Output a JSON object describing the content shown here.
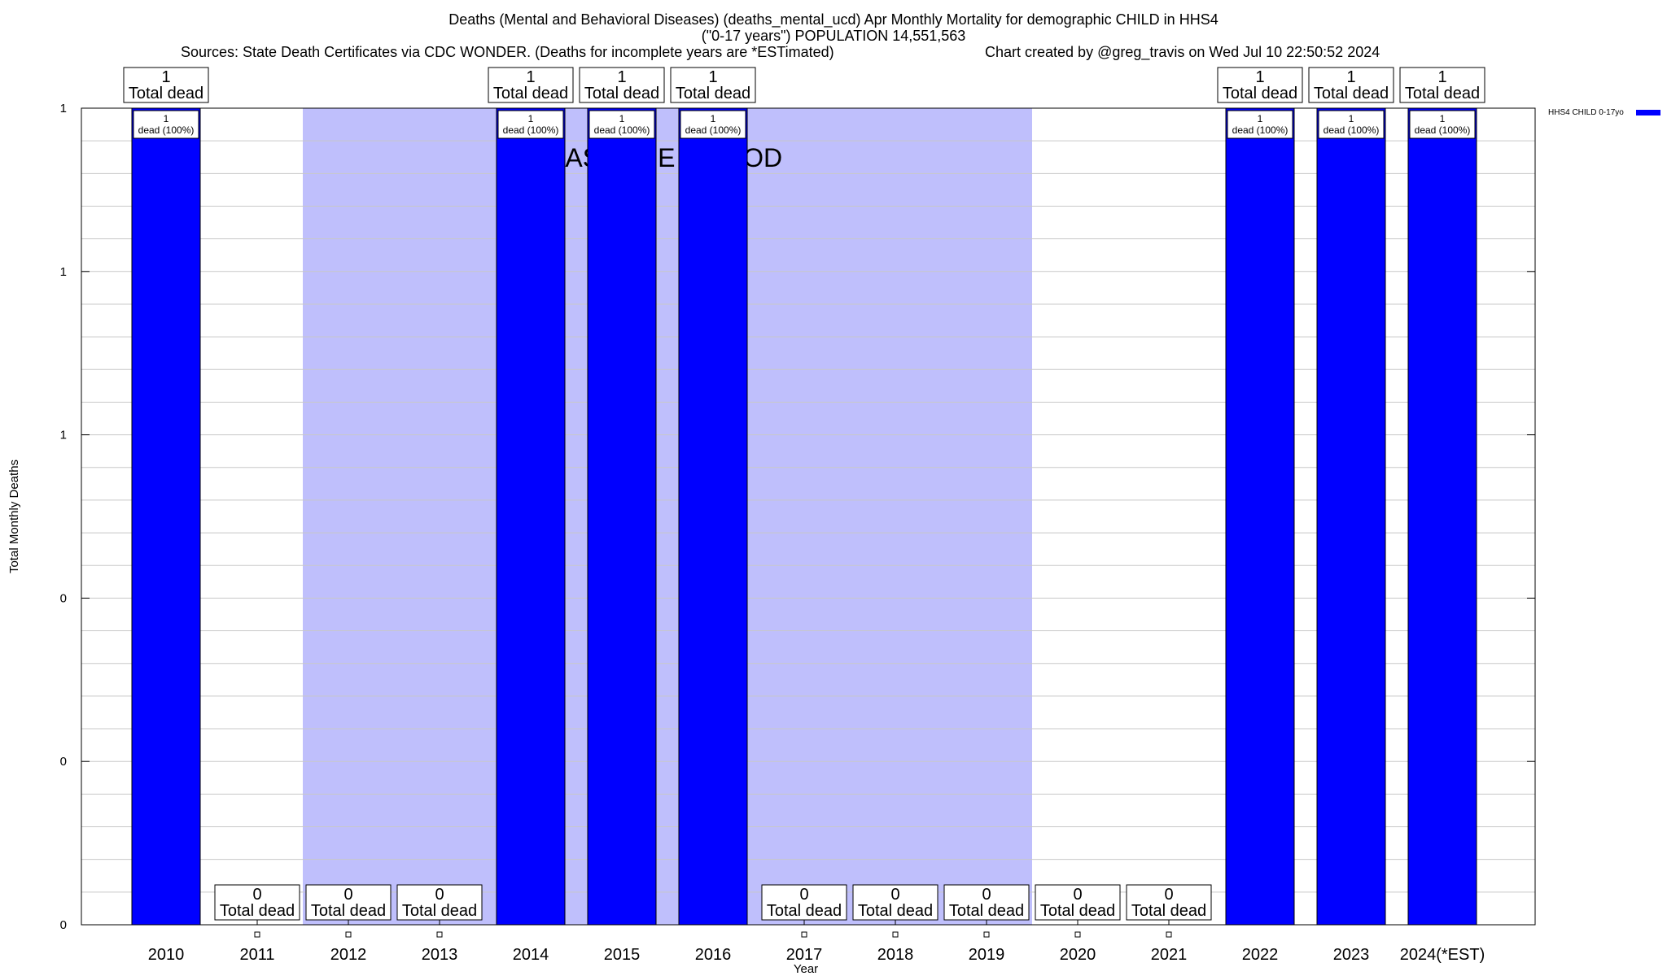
{
  "titles": {
    "line1": "Deaths (Mental and Behavioral Diseases) (deaths_mental_ucd) Apr Monthly Mortality for demographic CHILD in HHS4",
    "line2": "(\"0-17 years\") POPULATION 14,551,563",
    "line3": "Sources: State Death Certificates via CDC WONDER. (Deaths for incomplete years are *ESTimated)",
    "line4": "Chart created by @greg_travis on Wed Jul 10 22:50:52 2024"
  },
  "colors": {
    "bar": "#0000ff",
    "baseline_band": "#bfbffc",
    "grid": "#c8c8c8"
  },
  "chart_data": {
    "type": "bar",
    "xlabel": "Year",
    "ylabel": "Total Monthly Deaths",
    "categories": [
      "2010",
      "2011",
      "2012",
      "2013",
      "2014",
      "2015",
      "2016",
      "2017",
      "2018",
      "2019",
      "2020",
      "2021",
      "2022",
      "2023",
      "2024(*EST)"
    ],
    "series": [
      {
        "name": "HHS4 CHILD 0-17yo",
        "values": [
          1,
          0,
          0,
          0,
          1,
          1,
          1,
          0,
          0,
          0,
          0,
          0,
          1,
          1,
          1
        ]
      }
    ],
    "ylim": [
      0,
      1
    ],
    "ytick_labels": [
      "0",
      "0",
      "0",
      "1",
      "1",
      "1"
    ],
    "ytick_values": [
      0,
      0.2,
      0.4,
      0.6,
      0.8,
      1.0
    ],
    "grid": true,
    "legend": "top-right",
    "top_labels": [
      "1\nTotal dead",
      "0\nTotal dead",
      "0\nTotal dead",
      "0\nTotal dead",
      "1\nTotal dead",
      "1\nTotal dead",
      "1\nTotal dead",
      "0\nTotal dead",
      "0\nTotal dead",
      "0\nTotal dead",
      "0\nTotal dead",
      "0\nTotal dead",
      "1\nTotal dead",
      "1\nTotal dead",
      "1\nTotal dead"
    ],
    "inner_label_prefix": "1",
    "inner_label_suffix": "dead (100%)",
    "total_label_suffix": "Total dead",
    "baseline_period": {
      "label": "BASELINE PERIOD",
      "start_category": "2012",
      "end_category": "2019"
    }
  }
}
